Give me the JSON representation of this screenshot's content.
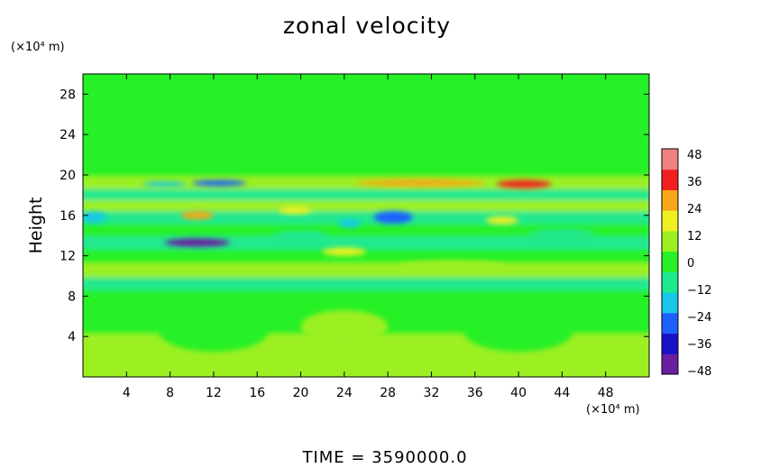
{
  "chart_data": {
    "type": "heatmap",
    "title": "zonal velocity",
    "ylabel": "Height",
    "x_unit": "(×10⁴ m)",
    "y_unit": "(×10⁴ m)",
    "xlim": [
      0,
      52
    ],
    "ylim": [
      0,
      30
    ],
    "x_ticks": [
      4,
      8,
      12,
      16,
      20,
      24,
      28,
      32,
      36,
      40,
      44,
      48
    ],
    "y_ticks": [
      4,
      8,
      12,
      16,
      20,
      24,
      28
    ],
    "colorbar": {
      "ticks": [
        48,
        36,
        24,
        12,
        0,
        -12,
        -24,
        -36,
        -48
      ],
      "range": [
        -48,
        48
      ],
      "colors": [
        "#6a1fa0",
        "#1a10c8",
        "#1e60ff",
        "#18c8e8",
        "#20e890",
        "#28f028",
        "#9cf020",
        "#f0f020",
        "#f8a818",
        "#f02020",
        "#f08080"
      ]
    },
    "bands": [
      {
        "y": 0.5,
        "v": 8
      },
      {
        "y": 3.0,
        "v": 6
      },
      {
        "y": 5.5,
        "v": 4
      },
      {
        "y": 8.0,
        "v": 2
      },
      {
        "y": 9.2,
        "v": -6
      },
      {
        "y": 10.5,
        "v": 8
      },
      {
        "y": 12.0,
        "v": -2
      },
      {
        "y": 13.3,
        "v": -12
      },
      {
        "y": 14.5,
        "v": 2
      },
      {
        "y": 15.8,
        "v": -10
      },
      {
        "y": 17.0,
        "v": 6
      },
      {
        "y": 18.0,
        "v": -6
      },
      {
        "y": 19.2,
        "v": 12
      },
      {
        "y": 20.5,
        "v": 0
      },
      {
        "y": 24.0,
        "v": 0
      },
      {
        "y": 30.0,
        "v": 0
      }
    ],
    "features": [
      {
        "x": 10.5,
        "y": 13.3,
        "rx": 3.0,
        "ry": 0.4,
        "v": -40
      },
      {
        "x": 12.5,
        "y": 19.2,
        "rx": 2.5,
        "ry": 0.3,
        "v": -24
      },
      {
        "x": 7.5,
        "y": 19.1,
        "rx": 2.0,
        "ry": 0.25,
        "v": -16
      },
      {
        "x": 28.5,
        "y": 15.8,
        "rx": 1.8,
        "ry": 0.6,
        "v": -30
      },
      {
        "x": 24.5,
        "y": 15.2,
        "rx": 1.0,
        "ry": 0.4,
        "v": -20
      },
      {
        "x": 31.0,
        "y": 19.2,
        "rx": 6.0,
        "ry": 0.35,
        "v": 24
      },
      {
        "x": 40.5,
        "y": 19.1,
        "rx": 2.5,
        "ry": 0.4,
        "v": 32
      },
      {
        "x": 10.5,
        "y": 16.0,
        "rx": 1.5,
        "ry": 0.4,
        "v": 22
      },
      {
        "x": 19.5,
        "y": 16.5,
        "rx": 1.5,
        "ry": 0.35,
        "v": 18
      },
      {
        "x": 1.0,
        "y": 15.8,
        "rx": 1.2,
        "ry": 0.5,
        "v": -20
      },
      {
        "x": 38.5,
        "y": 15.5,
        "rx": 1.5,
        "ry": 0.4,
        "v": 18
      },
      {
        "x": 24.0,
        "y": 12.4,
        "rx": 2.0,
        "ry": 0.4,
        "v": 18
      },
      {
        "x": 44.0,
        "y": 14.2,
        "rx": 3.0,
        "ry": 0.5,
        "v": -10
      },
      {
        "x": 34.0,
        "y": 11.0,
        "rx": 5.0,
        "ry": 0.5,
        "v": 12
      },
      {
        "x": 12.0,
        "y": 4.5,
        "rx": 5.0,
        "ry": 2.0,
        "v": -4
      },
      {
        "x": 40.0,
        "y": 4.5,
        "rx": 5.0,
        "ry": 2.0,
        "v": -4
      },
      {
        "x": 24.0,
        "y": 5.0,
        "rx": 4.0,
        "ry": 1.6,
        "v": 10
      },
      {
        "x": 20.0,
        "y": 14.0,
        "rx": 2.5,
        "ry": 0.5,
        "v": -12
      }
    ]
  },
  "footer": "TIME  =  3590000.0"
}
